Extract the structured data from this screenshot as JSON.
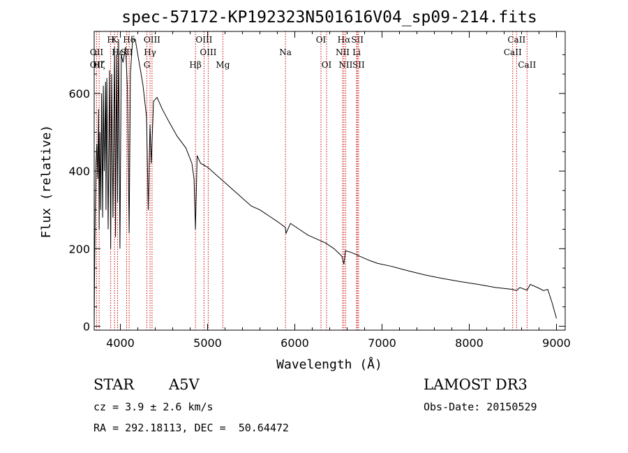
{
  "chart_data": {
    "type": "line",
    "title": "spec-57172-KP192323N501616V04_sp09-214.fits",
    "xlabel": "Wavelength (Å)",
    "ylabel": "Flux (relative)",
    "xlim": [
      3700,
      9100
    ],
    "ylim": [
      -10,
      760
    ],
    "xticks": [
      4000,
      5000,
      6000,
      7000,
      8000,
      9000
    ],
    "yticks": [
      0,
      200,
      400,
      600
    ],
    "grid": false,
    "series": [
      {
        "name": "flux",
        "x": [
          3700,
          3705,
          3712,
          3720,
          3730,
          3740,
          3750,
          3757,
          3765,
          3775,
          3785,
          3797,
          3805,
          3815,
          3830,
          3835,
          3845,
          3860,
          3875,
          3889,
          3900,
          3915,
          3933,
          3945,
          3955,
          3968,
          3980,
          3995,
          4010,
          4030,
          4060,
          4080,
          4101,
          4115,
          4140,
          4170,
          4200,
          4230,
          4260,
          4300,
          4320,
          4340,
          4355,
          4380,
          4420,
          4480,
          4550,
          4650,
          4750,
          4820,
          4845,
          4861,
          4880,
          4920,
          5000,
          5100,
          5200,
          5300,
          5400,
          5500,
          5600,
          5700,
          5800,
          5890,
          5900,
          5950,
          6050,
          6150,
          6250,
          6350,
          6450,
          6520,
          6540,
          6563,
          6580,
          6650,
          6750,
          6850,
          6950,
          7100,
          7300,
          7500,
          7700,
          7900,
          8100,
          8300,
          8498,
          8542,
          8580,
          8662,
          8700,
          8800,
          8850,
          8900,
          8950,
          9000
        ],
        "y": [
          0,
          150,
          300,
          420,
          470,
          380,
          560,
          250,
          500,
          300,
          600,
          280,
          620,
          400,
          630,
          300,
          640,
          250,
          660,
          200,
          650,
          280,
          720,
          230,
          700,
          320,
          740,
          200,
          700,
          680,
          720,
          620,
          240,
          650,
          740,
          740,
          700,
          660,
          620,
          540,
          300,
          520,
          420,
          580,
          590,
          560,
          530,
          490,
          460,
          420,
          380,
          250,
          440,
          420,
          410,
          390,
          370,
          350,
          330,
          310,
          300,
          285,
          270,
          255,
          240,
          265,
          250,
          235,
          225,
          215,
          200,
          185,
          180,
          160,
          195,
          190,
          180,
          170,
          162,
          155,
          143,
          132,
          123,
          115,
          108,
          100,
          95,
          92,
          100,
          93,
          108,
          98,
          92,
          95,
          60,
          20
        ]
      }
    ],
    "line_markers": [
      {
        "label": "Hδ",
        "wavelength": 4101,
        "row": 1
      },
      {
        "label": "OIII",
        "wavelength": 4363,
        "row": 1
      },
      {
        "label": "OIII",
        "wavelength": 4959,
        "row": 1
      },
      {
        "label": "OI",
        "wavelength": 6300,
        "row": 1
      },
      {
        "label": "Hα",
        "wavelength": 6563,
        "row": 1
      },
      {
        "label": "SII",
        "wavelength": 6717,
        "row": 1
      },
      {
        "label": "CaII",
        "wavelength": 8542,
        "row": 1
      },
      {
        "label": "H",
        "wavelength": 3889,
        "row": 1
      },
      {
        "label": "K",
        "wavelength": 3933,
        "row": 1
      },
      {
        "label": "OII",
        "wavelength": 3727,
        "row": 2
      },
      {
        "label": "Hε",
        "wavelength": 3968,
        "row": 2
      },
      {
        "label": "SII",
        "wavelength": 4072,
        "row": 2
      },
      {
        "label": "Hγ",
        "wavelength": 4340,
        "row": 2
      },
      {
        "label": "OIII",
        "wavelength": 5007,
        "row": 2
      },
      {
        "label": "Na",
        "wavelength": 5893,
        "row": 2
      },
      {
        "label": "NII",
        "wavelength": 6548,
        "row": 2
      },
      {
        "label": "Li",
        "wavelength": 6708,
        "row": 2
      },
      {
        "label": "CaII",
        "wavelength": 8498,
        "row": 2
      },
      {
        "label": "OII",
        "wavelength": 3727,
        "row": 3
      },
      {
        "label": "Hζ",
        "wavelength": 3757,
        "row": 3
      },
      {
        "label": "G",
        "wavelength": 4304,
        "row": 3
      },
      {
        "label": "Hβ",
        "wavelength": 4861,
        "row": 3
      },
      {
        "label": "Mg",
        "wavelength": 5175,
        "row": 3
      },
      {
        "label": "OI",
        "wavelength": 6364,
        "row": 3
      },
      {
        "label": "NII",
        "wavelength": 6583,
        "row": 3
      },
      {
        "label": "SII",
        "wavelength": 6731,
        "row": 3
      },
      {
        "label": "CaII",
        "wavelength": 8662,
        "row": 3
      }
    ]
  },
  "info": {
    "object_class": "STAR",
    "subclass": "A5V",
    "survey": "LAMOST DR3",
    "cz": "cz = 3.9 ± 2.6 km/s",
    "obs_date": "Obs-Date: 20150529",
    "coords": "RA = 292.18113, DEC =  50.64472"
  }
}
